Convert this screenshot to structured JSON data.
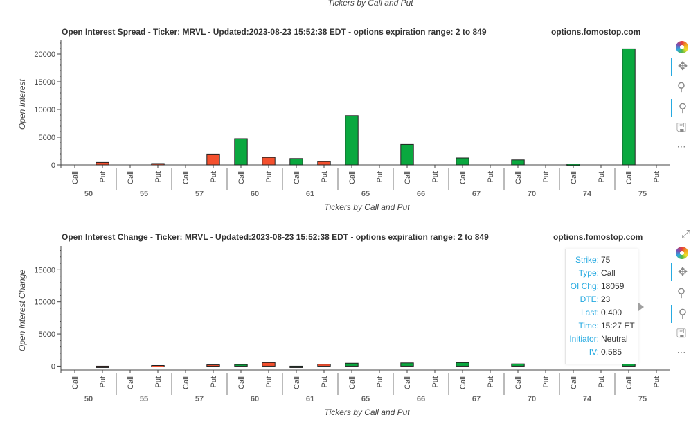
{
  "page": {
    "top_xlabel": "Tickers by Call and Put"
  },
  "charts": [
    {
      "title": "Open Interest Spread - Ticker: MRVL - Updated:2023-08-23 15:52:38 EDT - options expiration range: 2 to 849",
      "site": "options.fomostop.com",
      "ylabel": "Open Interest",
      "xlabel": "Tickers by Call and Put"
    },
    {
      "title": "Open Interest Change - Ticker: MRVL - Updated:2023-08-23 15:52:38 EDT - options expiration range: 2 to 849",
      "site": "options.fomostop.com",
      "ylabel": "Open Interest Change",
      "xlabel": "Tickers by Call and Put"
    }
  ],
  "toolbar": {
    "icons": [
      "bokeh-logo-icon",
      "pan-icon",
      "box-zoom-icon",
      "wheel-zoom-icon",
      "save-icon",
      "more-icon"
    ],
    "more_label": "⋯"
  },
  "tooltip": {
    "rows": [
      {
        "key": "Strike:",
        "value": "75"
      },
      {
        "key": "Type:",
        "value": "Call"
      },
      {
        "key": "OI Chg:",
        "value": "18059"
      },
      {
        "key": "DTE:",
        "value": "23"
      },
      {
        "key": "Last:",
        "value": "0.400"
      },
      {
        "key": "Time:",
        "value": "15:27 ET"
      },
      {
        "key": "Initiator:",
        "value": "Neutral"
      },
      {
        "key": "IV:",
        "value": "0.585"
      }
    ]
  },
  "chart_data": [
    {
      "type": "bar",
      "title": "Open Interest Spread - Ticker: MRVL - Updated:2023-08-23 15:52:38 EDT - options expiration range: 2 to 849",
      "xlabel": "Tickers by Call and Put",
      "ylabel": "Open Interest",
      "groups": [
        "50",
        "55",
        "57",
        "60",
        "61",
        "65",
        "66",
        "67",
        "70",
        "74",
        "75"
      ],
      "subcategories": [
        "Call",
        "Put"
      ],
      "series": [
        {
          "name": "Call",
          "color": "#0aa83f",
          "values": [
            0,
            0,
            0,
            4750,
            1150,
            8900,
            3700,
            1250,
            900,
            150,
            20950
          ]
        },
        {
          "name": "Put",
          "color": "#f4502e",
          "values": [
            450,
            250,
            1950,
            1350,
            600,
            0,
            0,
            0,
            0,
            0,
            0
          ]
        }
      ],
      "ylim": [
        0,
        22500
      ],
      "yticks": [
        0,
        5000,
        10000,
        15000,
        20000
      ],
      "grid": false
    },
    {
      "type": "bar",
      "title": "Open Interest Change - Ticker: MRVL - Updated:2023-08-23 15:52:38 EDT - options expiration range: 2 to 849",
      "xlabel": "Tickers by Call and Put",
      "ylabel": "Open Interest Change",
      "groups": [
        "50",
        "55",
        "57",
        "60",
        "61",
        "65",
        "66",
        "67",
        "70",
        "74",
        "75"
      ],
      "subcategories": [
        "Call",
        "Put"
      ],
      "series": [
        {
          "name": "Call",
          "color": "#0aa83f",
          "values": [
            0,
            0,
            0,
            250,
            -200,
            450,
            500,
            550,
            350,
            0,
            18059
          ]
        },
        {
          "name": "Put",
          "color": "#f4502e",
          "values": [
            -100,
            100,
            200,
            550,
            300,
            0,
            0,
            0,
            0,
            0,
            0
          ]
        }
      ],
      "ylim": [
        -600,
        18700
      ],
      "yticks": [
        0,
        5000,
        10000,
        15000
      ],
      "grid": false
    }
  ]
}
